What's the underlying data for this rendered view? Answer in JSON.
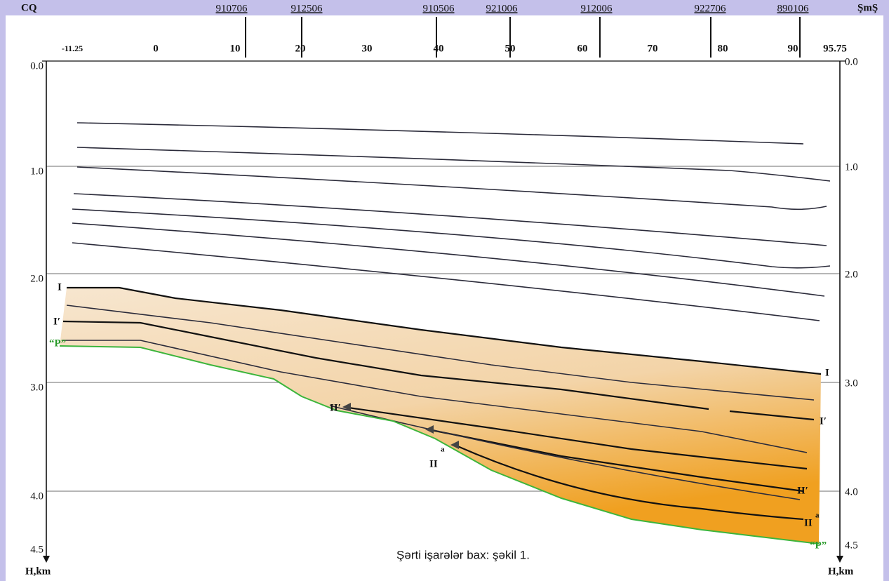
{
  "header": {
    "left": "CQ",
    "right": "ŞmŞ"
  },
  "wells": [
    "910706",
    "912506",
    "910506",
    "921006",
    "912006",
    "922706",
    "890106"
  ],
  "x_axis": {
    "ticks": [
      "-11.25",
      "0",
      "10",
      "20",
      "30",
      "40",
      "50",
      "60",
      "70",
      "80",
      "90",
      "95.75"
    ]
  },
  "depth_axis": {
    "ticks": [
      "0.0",
      "1.0",
      "2.0",
      "3.0",
      "4.0",
      "4.5"
    ],
    "left_label": "H,km",
    "right_label": "H,km"
  },
  "horizons": {
    "left_I": "I",
    "left_I_prime": "Iʹ",
    "left_P": "“P”",
    "right_I": "I",
    "right_I_prime": "Iʹ",
    "right_II_prime": "IIʹ",
    "right_II_a": {
      "text": "II",
      "sup": "a"
    },
    "right_P": "“P”",
    "mid_II_prime": "IIʹ",
    "mid_II_a": {
      "text": "II",
      "sup": "a"
    }
  },
  "note": "Şərti işarələr bax: şəkil 1."
}
